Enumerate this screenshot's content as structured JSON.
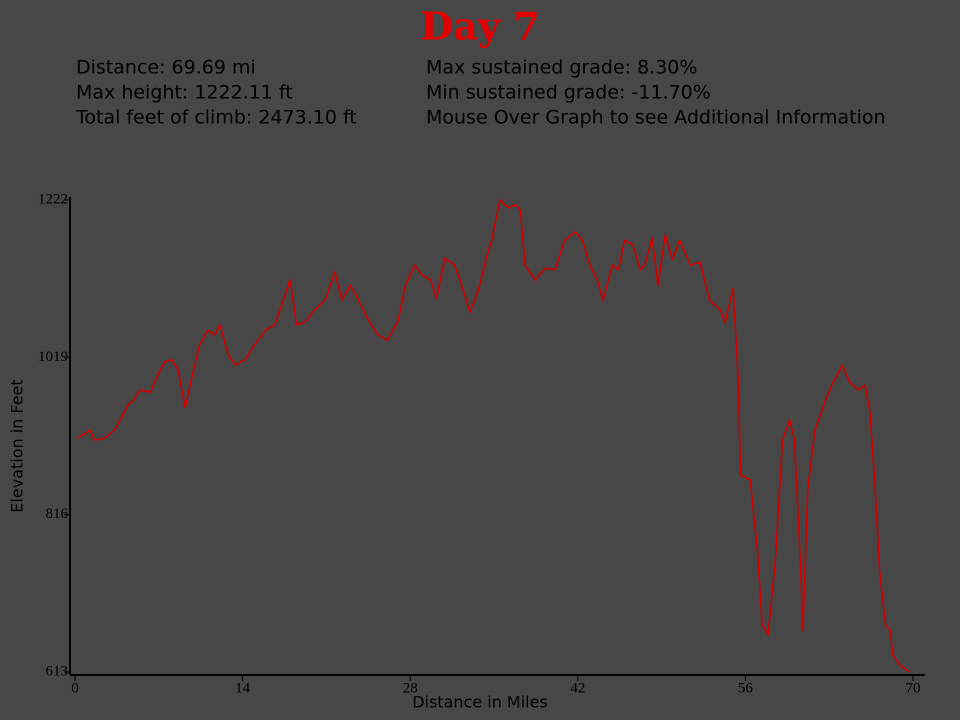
{
  "chart_data": {
    "type": "line",
    "title": "Day 7",
    "stats": [
      "Distance: 69.69 mi",
      "Max height: 1222.11 ft",
      "Total feet of climb: 2473.10 ft",
      "Max sustained grade: 8.30%",
      "Min sustained grade: -11.70%",
      "Mouse Over Graph to see Additional Information"
    ],
    "x_label": "Distance in Miles",
    "y_label": "Elevation in Feet",
    "color": "#d40000",
    "xlim": [
      0,
      71
    ],
    "ylim": [
      613,
      1222
    ],
    "xticks": [
      0,
      14,
      28,
      42,
      56,
      70
    ],
    "yticks": [
      613,
      816,
      1019,
      1222
    ],
    "x": [
      0.25,
      1.25,
      1.67,
      2.5,
      3.3,
      3.76,
      4.4,
      4.9,
      5.4,
      6.3,
      6.9,
      7.5,
      8.1,
      8.6,
      9.2,
      9.8,
      10.4,
      11.1,
      11.7,
      12.1,
      12.8,
      13.4,
      14.2,
      15.0,
      15.9,
      16.7,
      17.4,
      17.97,
      18.5,
      19.2,
      20.0,
      20.9,
      21.7,
      22.3,
      23.0,
      23.6,
      24.5,
      25.3,
      26.1,
      27.0,
      27.6,
      28.4,
      29.0,
      29.7,
      30.2,
      30.9,
      31.7,
      32.3,
      33.0,
      33.7,
      34.3,
      34.8,
      35.5,
      36.2,
      36.8,
      37.2,
      37.6,
      38.4,
      39.3,
      40.1,
      40.9,
      41.8,
      42.4,
      43.0,
      43.6,
      44.1,
      44.9,
      45.4,
      45.9,
      46.6,
      47.2,
      47.6,
      48.2,
      48.7,
      49.3,
      49.9,
      50.5,
      51.4,
      52.2,
      53.0,
      53.9,
      54.3,
      54.97,
      55.4,
      55.6,
      56.4,
      57.0,
      57.4,
      57.9,
      58.5,
      59.1,
      59.7,
      60.1,
      60.6,
      60.8,
      61.2,
      61.8,
      62.7,
      63.2,
      64.1,
      64.7,
      65.4,
      66.0,
      66.4,
      66.8,
      67.2,
      67.7,
      68.1,
      68.3,
      68.9,
      69.7
    ],
    "values": [
      915,
      925,
      912,
      915,
      925,
      938,
      957,
      964,
      977,
      974,
      996,
      1013,
      1016,
      1003,
      954,
      996,
      1035,
      1054,
      1048,
      1061,
      1022,
      1009,
      1016,
      1035,
      1054,
      1061,
      1093,
      1119,
      1061,
      1064,
      1080,
      1093,
      1129,
      1093,
      1112,
      1095,
      1067,
      1048,
      1041,
      1067,
      1112,
      1138,
      1125,
      1119,
      1095,
      1147,
      1138,
      1112,
      1077,
      1106,
      1144,
      1170,
      1222,
      1212,
      1216,
      1209,
      1138,
      1119,
      1134,
      1132,
      1170,
      1181,
      1170,
      1138,
      1119,
      1093,
      1138,
      1132,
      1170,
      1164,
      1132,
      1138,
      1173,
      1112,
      1177,
      1145,
      1170,
      1138,
      1142,
      1093,
      1080,
      1064,
      1108,
      990,
      867,
      861,
      770,
      674,
      661,
      757,
      912,
      938,
      912,
      751,
      667,
      848,
      925,
      964,
      983,
      1009,
      987,
      977,
      983,
      948,
      861,
      745,
      674,
      667,
      635,
      622,
      613
    ]
  }
}
